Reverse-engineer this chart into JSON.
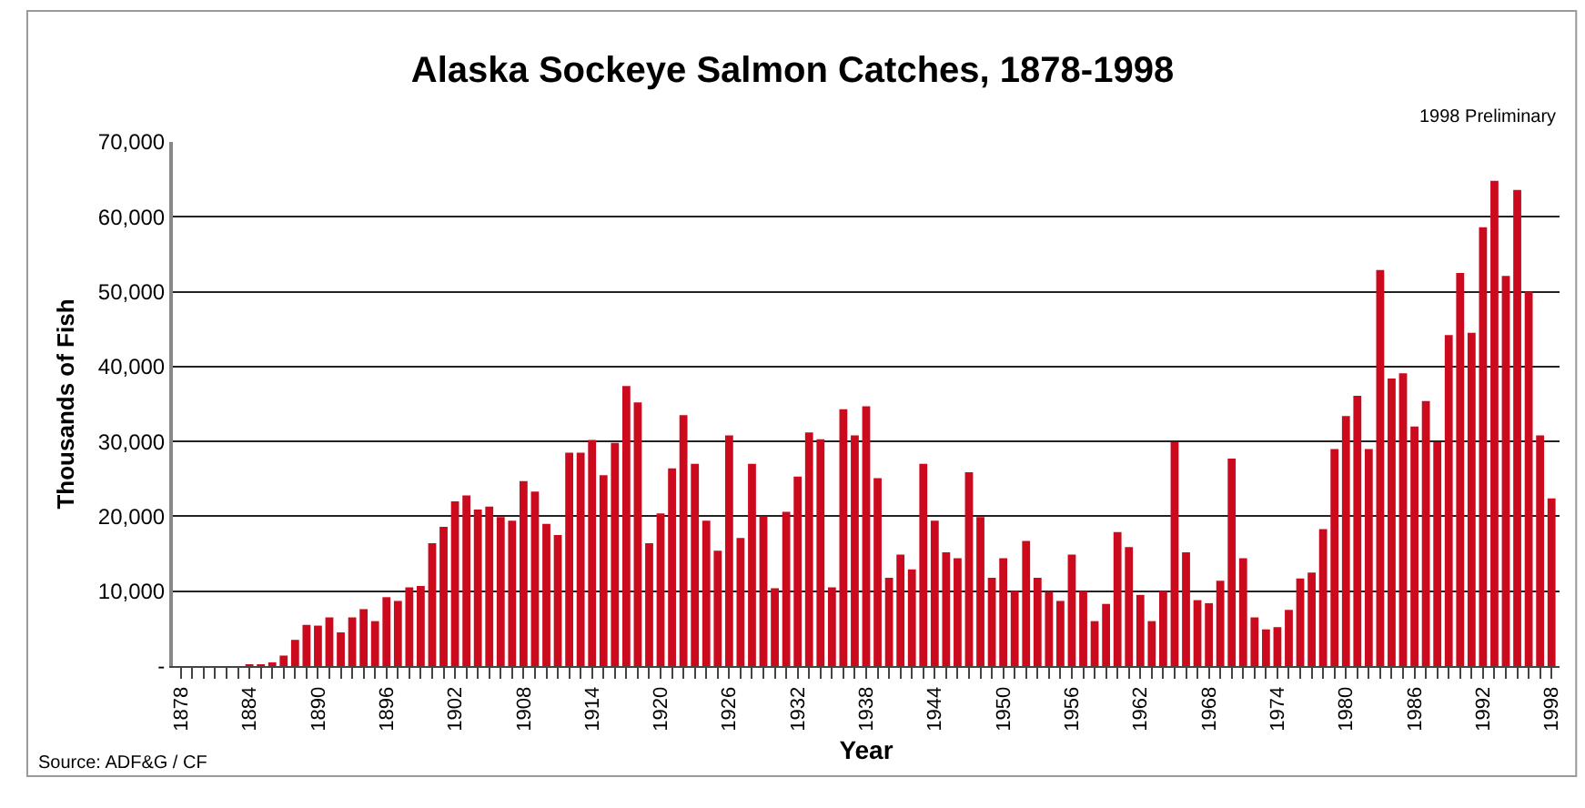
{
  "chart_data": {
    "type": "bar",
    "title": "Alaska Sockeye Salmon Catches, 1878-1998",
    "xlabel": "Year",
    "ylabel": "Thousands of Fish",
    "categories": [
      "1878",
      null,
      null,
      null,
      null,
      null,
      "1884",
      null,
      null,
      null,
      null,
      null,
      "1890",
      null,
      null,
      null,
      null,
      null,
      "1896",
      null,
      null,
      null,
      null,
      null,
      "1902",
      null,
      null,
      null,
      null,
      null,
      "1908",
      null,
      null,
      null,
      null,
      null,
      "1914",
      null,
      null,
      null,
      null,
      null,
      "1920",
      null,
      null,
      null,
      null,
      null,
      "1926",
      null,
      null,
      null,
      null,
      null,
      "1932",
      null,
      null,
      null,
      null,
      null,
      "1938",
      null,
      null,
      null,
      null,
      null,
      "1944",
      null,
      null,
      null,
      null,
      null,
      "1950",
      null,
      null,
      null,
      null,
      null,
      "1956",
      null,
      null,
      null,
      null,
      null,
      "1962",
      null,
      null,
      null,
      null,
      null,
      "1968",
      null,
      null,
      null,
      null,
      null,
      "1974",
      null,
      null,
      null,
      null,
      null,
      "1980",
      null,
      null,
      null,
      null,
      null,
      "1986",
      null,
      null,
      null,
      null,
      null,
      "1992",
      null,
      null,
      null,
      null,
      null,
      "1998"
    ],
    "values": [
      0,
      0,
      0,
      0,
      0,
      0,
      100,
      200,
      500,
      1400,
      3500,
      5500,
      5400,
      6500,
      4500,
      6500,
      7600,
      6000,
      9200,
      8700,
      10500,
      10700,
      16400,
      18600,
      22000,
      22800,
      20900,
      21300,
      19900,
      19400,
      24700,
      23300,
      19000,
      17500,
      28500,
      28500,
      30200,
      25500,
      29800,
      37400,
      35200,
      16400,
      20400,
      26400,
      33500,
      27000,
      19400,
      15400,
      30800,
      17100,
      27000,
      20000,
      10400,
      20600,
      25300,
      31200,
      30300,
      10500,
      34300,
      30800,
      34700,
      25100,
      11800,
      14900,
      12900,
      27000,
      19400,
      15200,
      14400,
      25900,
      19900,
      11800,
      14400,
      10000,
      16700,
      11800,
      9900,
      8700,
      14900,
      10000,
      6000,
      8300,
      17900,
      15900,
      9500,
      6000,
      10000,
      29900,
      15200,
      8800,
      8400,
      11400,
      27700,
      14400,
      6500,
      4900,
      5200,
      7500,
      11700,
      12500,
      18300,
      29000,
      33400,
      36100,
      29000,
      52900,
      38400,
      39100,
      32000,
      35400,
      29900,
      44200,
      52500,
      44500,
      58600,
      64800,
      52100,
      63600,
      50000,
      30800,
      22400
    ],
    "color": "#cc0a1e",
    "ylim": [
      0,
      70000
    ],
    "yticks": [
      {
        "value": 0,
        "label": "-"
      },
      {
        "value": 10000,
        "label": "10,000"
      },
      {
        "value": 20000,
        "label": "20,000"
      },
      {
        "value": 30000,
        "label": "30,000"
      },
      {
        "value": 40000,
        "label": "40,000"
      },
      {
        "value": 50000,
        "label": "50,000"
      },
      {
        "value": 60000,
        "label": "60,000"
      },
      {
        "value": 70000,
        "label": "70,000"
      }
    ],
    "grid": "y",
    "annotations": [
      "1998 Preliminary",
      "Source: ADF&G / CF"
    ]
  }
}
